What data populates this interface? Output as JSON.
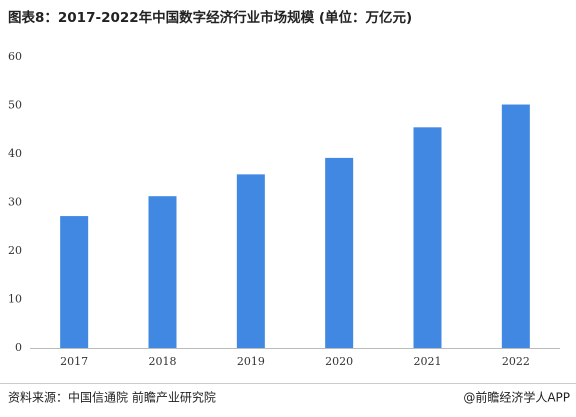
{
  "chart_data": {
    "type": "bar",
    "title": "图表8：2017-2022年中国数字经济行业市场规模 (单位：万亿元)",
    "categories": [
      "2017",
      "2018",
      "2019",
      "2020",
      "2021",
      "2022"
    ],
    "values": [
      27.2,
      31.3,
      35.8,
      39.2,
      45.5,
      50.2
    ],
    "color": "#4088e2",
    "ylim": [
      0,
      60
    ],
    "yticks": [
      0,
      10,
      20,
      30,
      40,
      50,
      60
    ],
    "grid": false,
    "source": "资料来源：中国信通院 前瞻产业研究院",
    "credit": "@前瞻经济学人APP"
  }
}
